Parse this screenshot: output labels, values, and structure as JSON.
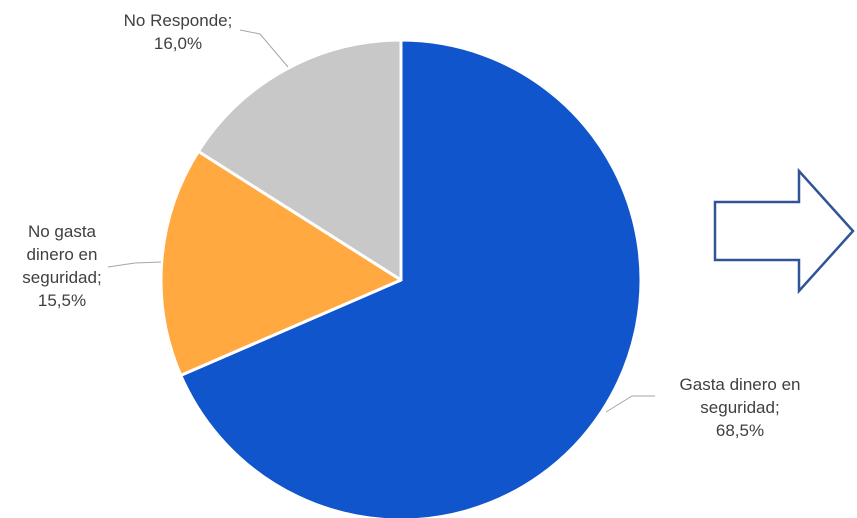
{
  "chart_data": {
    "type": "pie",
    "slices": [
      {
        "label_lines": [
          "Gasta dinero en",
          "seguridad;"
        ],
        "value": 68.5,
        "value_label": "68,5%",
        "color": "#1155CC"
      },
      {
        "label_lines": [
          "No gasta",
          "dinero en",
          "seguridad;"
        ],
        "value": 15.5,
        "value_label": "15,5%",
        "color": "#FFA940"
      },
      {
        "label_lines": [
          "No Responde;"
        ],
        "value": 16.0,
        "value_label": "16,0%",
        "color": "#C8C8C8"
      }
    ],
    "start_angle": "top, clockwise",
    "title": ""
  },
  "decoration": {
    "arrow_icon": "right-arrow-outline-icon",
    "arrow_color": "#2F5597"
  }
}
